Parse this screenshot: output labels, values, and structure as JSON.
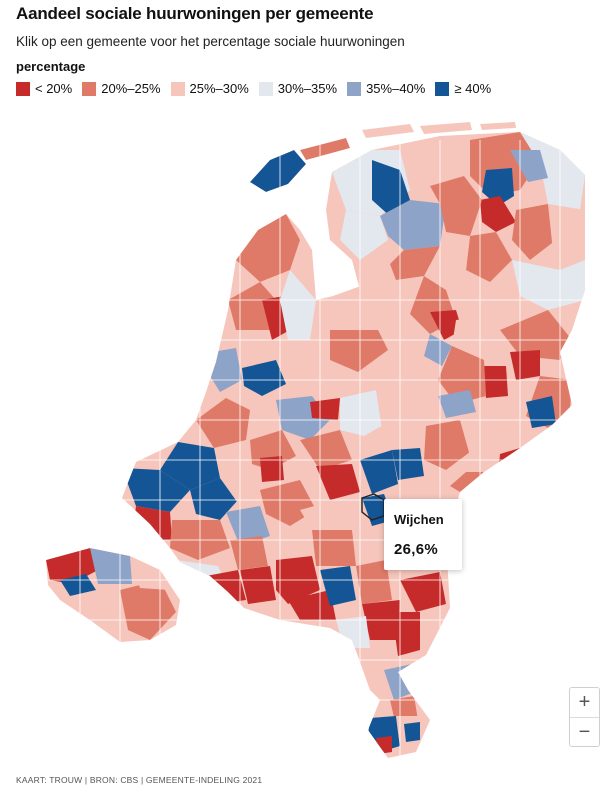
{
  "title": "Aandeel sociale huurwoningen per gemeente",
  "subtitle": "Klik op een gemeente voor het percentage sociale huurwoningen",
  "legend": {
    "title": "percentage",
    "items": [
      {
        "label": "< 20%",
        "color": "#c62b2b"
      },
      {
        "label": "20%–25%",
        "color": "#e07a68"
      },
      {
        "label": "25%–30%",
        "color": "#f6c6bc"
      },
      {
        "label": "30%–35%",
        "color": "#e3e7ee"
      },
      {
        "label": "35%–40%",
        "color": "#8ea3c8"
      },
      {
        "label": "≥ 40%",
        "color": "#145596"
      }
    ]
  },
  "tooltip": {
    "municipality": "Wijchen",
    "value": "26,6%"
  },
  "zoom": {
    "in_label": "+",
    "out_label": "−"
  },
  "source": "KAART: TROUW | BRON: CBS | GEMEENTE-INDELING 2021",
  "map_colors": {
    "outline": "#ffffff",
    "ijsselmeer": "#ffffff"
  }
}
